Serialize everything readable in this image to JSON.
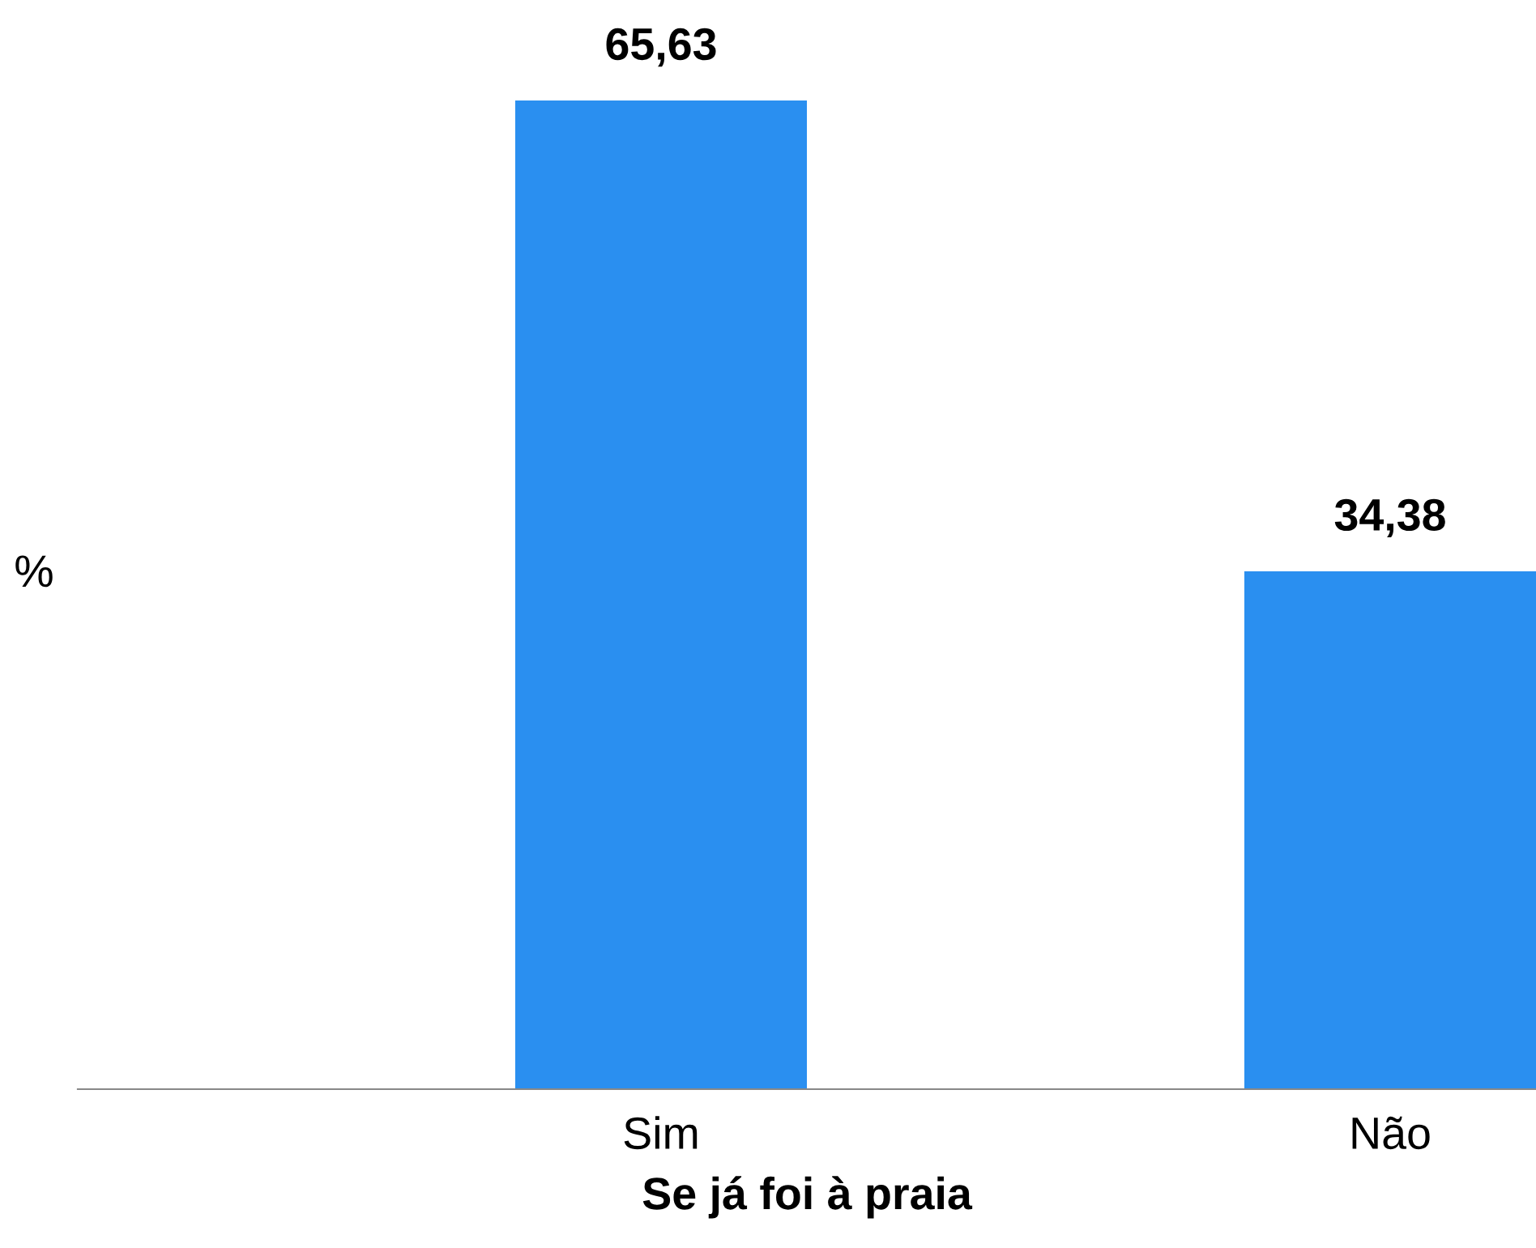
{
  "chart_data": {
    "type": "bar",
    "xlabel": "Se já foi à praia",
    "ylabel": "%",
    "categories": [
      "Sim",
      "Não"
    ],
    "values": [
      65.63,
      34.38
    ],
    "value_labels": [
      "65,63",
      "34,38"
    ],
    "color": "#2a8ff0",
    "grid": false,
    "legend": false
  }
}
